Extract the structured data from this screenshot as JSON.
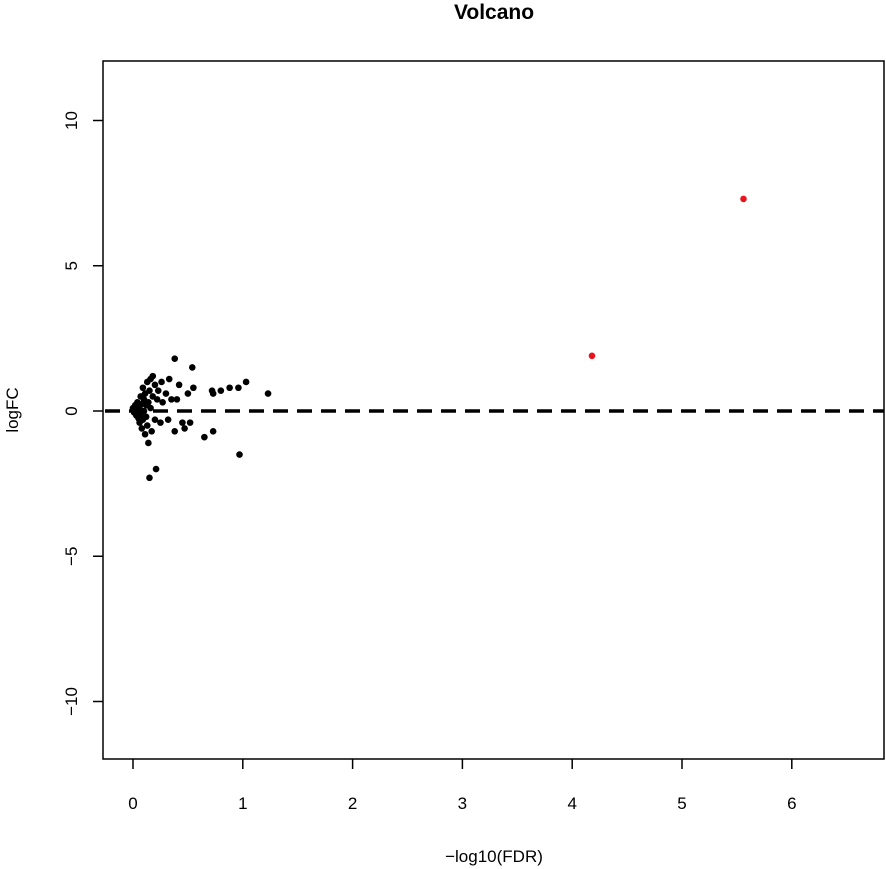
{
  "chart_data": {
    "type": "scatter",
    "title": "Volcano",
    "xlabel": "−log10(FDR)",
    "ylabel": "logFC",
    "xlim": [
      -0.3,
      6.8
    ],
    "ylim": [
      -12,
      12
    ],
    "xticks": [
      "0",
      "1",
      "2",
      "3",
      "4",
      "5",
      "6"
    ],
    "yticks": [
      "−10",
      "−5",
      "0",
      "5",
      "10"
    ],
    "grid": false,
    "reference_line": {
      "y": 0,
      "style": "dashed",
      "color": "#000000"
    },
    "colors": {
      "significant": "#e8141e",
      "nonsignificant": "#000000"
    },
    "series": [
      {
        "color": "#000000",
        "points": [
          [
            0.0,
            0.1
          ],
          [
            0.01,
            -0.05
          ],
          [
            0.02,
            0.2
          ],
          [
            0.03,
            -0.15
          ],
          [
            0.03,
            0.0
          ],
          [
            0.04,
            0.3
          ],
          [
            0.05,
            -0.25
          ],
          [
            0.05,
            0.05
          ],
          [
            0.06,
            -0.4
          ],
          [
            0.06,
            0.15
          ],
          [
            0.07,
            -0.1
          ],
          [
            0.07,
            0.5
          ],
          [
            0.08,
            -0.6
          ],
          [
            0.08,
            0.25
          ],
          [
            0.09,
            0.8
          ],
          [
            0.09,
            -0.3
          ],
          [
            0.1,
            0.0
          ],
          [
            0.1,
            0.4
          ],
          [
            0.11,
            -0.8
          ],
          [
            0.11,
            0.6
          ],
          [
            0.12,
            0.2
          ],
          [
            0.12,
            -0.2
          ],
          [
            0.13,
            1.0
          ],
          [
            0.13,
            -0.5
          ],
          [
            0.14,
            0.3
          ],
          [
            0.14,
            -1.1
          ],
          [
            0.15,
            0.7
          ],
          [
            0.15,
            -2.3
          ],
          [
            0.16,
            1.1
          ],
          [
            0.16,
            0.1
          ],
          [
            0.17,
            -0.7
          ],
          [
            0.18,
            0.5
          ],
          [
            0.18,
            1.2
          ],
          [
            0.2,
            -0.3
          ],
          [
            0.2,
            0.9
          ],
          [
            0.21,
            -2.0
          ],
          [
            0.22,
            0.4
          ],
          [
            0.23,
            0.7
          ],
          [
            0.25,
            -0.4
          ],
          [
            0.26,
            1.0
          ],
          [
            0.27,
            0.3
          ],
          [
            0.3,
            0.6
          ],
          [
            0.32,
            -0.3
          ],
          [
            0.33,
            1.1
          ],
          [
            0.35,
            0.4
          ],
          [
            0.38,
            1.8
          ],
          [
            0.38,
            -0.7
          ],
          [
            0.4,
            0.4
          ],
          [
            0.42,
            0.9
          ],
          [
            0.45,
            -0.4
          ],
          [
            0.47,
            -0.6
          ],
          [
            0.5,
            0.6
          ],
          [
            0.52,
            -0.4
          ],
          [
            0.54,
            1.5
          ],
          [
            0.55,
            0.8
          ],
          [
            0.65,
            -0.9
          ],
          [
            0.72,
            0.7
          ],
          [
            0.73,
            0.6
          ],
          [
            0.73,
            -0.7
          ],
          [
            0.8,
            0.7
          ],
          [
            0.88,
            0.8
          ],
          [
            0.96,
            0.8
          ],
          [
            0.97,
            -1.5
          ],
          [
            1.03,
            1.0
          ],
          [
            1.23,
            0.6
          ]
        ]
      },
      {
        "color": "#e8141e",
        "points": [
          [
            4.18,
            1.9
          ],
          [
            5.56,
            7.3
          ]
        ]
      }
    ]
  }
}
